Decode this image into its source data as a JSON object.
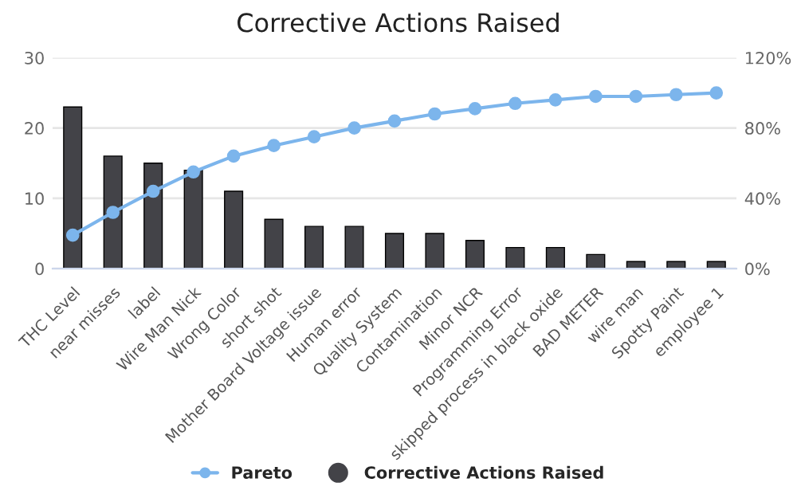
{
  "chart_data": {
    "type": "bar",
    "title": "Corrective Actions Raised",
    "categories": [
      "THC Level",
      "near misses",
      "label",
      "Wire Man Nick",
      "Wrong Color",
      "short shot",
      "Mother Board Voltage issue",
      "Human error",
      "Quality System",
      "Contamination",
      "Minor NCR",
      "Programming Error",
      "skipped process in black oxide",
      "BAD METER",
      "wire man",
      "Spotty Paint",
      "employee 1"
    ],
    "series": [
      {
        "name": "Pareto",
        "type": "line",
        "axis": "y2",
        "color": "#7cb5ec",
        "marker": "circle",
        "values": [
          19,
          32,
          44,
          55,
          64,
          70,
          75,
          80,
          84,
          88,
          91,
          94,
          96,
          98,
          98,
          99,
          100
        ]
      },
      {
        "name": "Corrective Actions Raised",
        "color": "#434348",
        "values": [
          23,
          16,
          15,
          14,
          11,
          7,
          6,
          6,
          5,
          5,
          4,
          3,
          3,
          2,
          1,
          1,
          1
        ]
      }
    ],
    "ylim": [
      0,
      30
    ],
    "yticks": [
      0,
      10,
      20,
      30
    ],
    "y2lim": [
      0,
      120
    ],
    "y2ticks": [
      {
        "value": 0,
        "label": "0%"
      },
      {
        "value": 40,
        "label": "40%"
      },
      {
        "value": 80,
        "label": "80%"
      },
      {
        "value": 120,
        "label": "120%"
      }
    ],
    "grid": "y",
    "legend": "bottom"
  }
}
